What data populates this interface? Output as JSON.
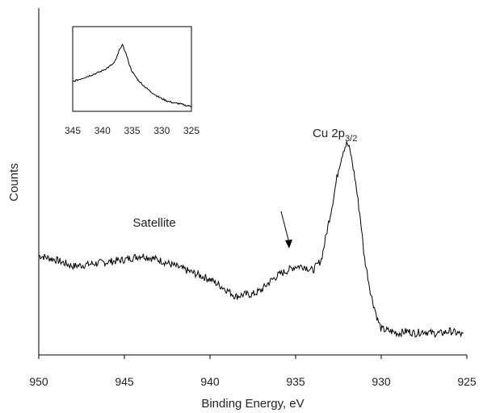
{
  "chart_data": [
    {
      "type": "line",
      "title": "",
      "xlabel": "Binding Energy, eV",
      "ylabel": "Counts",
      "xlim": [
        950,
        925
      ],
      "x_reversed": true,
      "y_ticks_shown": false,
      "xticks": [
        950,
        945,
        940,
        935,
        930,
        925
      ],
      "grid": false,
      "annotations": [
        {
          "text": "Satellite",
          "x": 943.5
        },
        {
          "text": "Cu 2p",
          "subscript": "3/2",
          "x": 931.5
        },
        {
          "type": "arrow",
          "target_x": 935
        }
      ],
      "series": [
        {
          "x": [
            950,
            949,
            948,
            947,
            946,
            945,
            944,
            943,
            942,
            941,
            940,
            939,
            938.5,
            938,
            937.5,
            937,
            936.5,
            936,
            935.5,
            935,
            934.5,
            934,
            933.5,
            933.2,
            932.8,
            932.5,
            932.2,
            932,
            931.8,
            931.5,
            931.2,
            931,
            930.6,
            930.2,
            930,
            929.5,
            929,
            928.5,
            928,
            927.5,
            927,
            926.5,
            926,
            925.5,
            925.2
          ],
          "y": [
            0.46,
            0.44,
            0.41,
            0.42,
            0.43,
            0.44,
            0.46,
            0.44,
            0.41,
            0.38,
            0.35,
            0.3,
            0.27,
            0.28,
            0.28,
            0.3,
            0.34,
            0.37,
            0.39,
            0.41,
            0.41,
            0.39,
            0.44,
            0.56,
            0.72,
            0.86,
            0.95,
            0.98,
            0.94,
            0.8,
            0.62,
            0.46,
            0.28,
            0.16,
            0.12,
            0.11,
            0.1,
            0.11,
            0.1,
            0.11,
            0.1,
            0.1,
            0.11,
            0.1,
            0.09
          ]
        }
      ]
    },
    {
      "type": "line",
      "role": "inset",
      "xlim": [
        345,
        325
      ],
      "x_reversed": true,
      "xticks": [
        345,
        340,
        335,
        330,
        325
      ],
      "series": [
        {
          "x": [
            345,
            343,
            341,
            340,
            339,
            338,
            337.5,
            337,
            336.6,
            336,
            335.5,
            335,
            334,
            333,
            332,
            331,
            330,
            329,
            328,
            327,
            326,
            325
          ],
          "y": [
            0.35,
            0.4,
            0.45,
            0.48,
            0.52,
            0.57,
            0.65,
            0.75,
            0.78,
            0.68,
            0.56,
            0.47,
            0.37,
            0.3,
            0.24,
            0.19,
            0.15,
            0.12,
            0.1,
            0.09,
            0.07,
            0.06
          ]
        }
      ]
    }
  ]
}
